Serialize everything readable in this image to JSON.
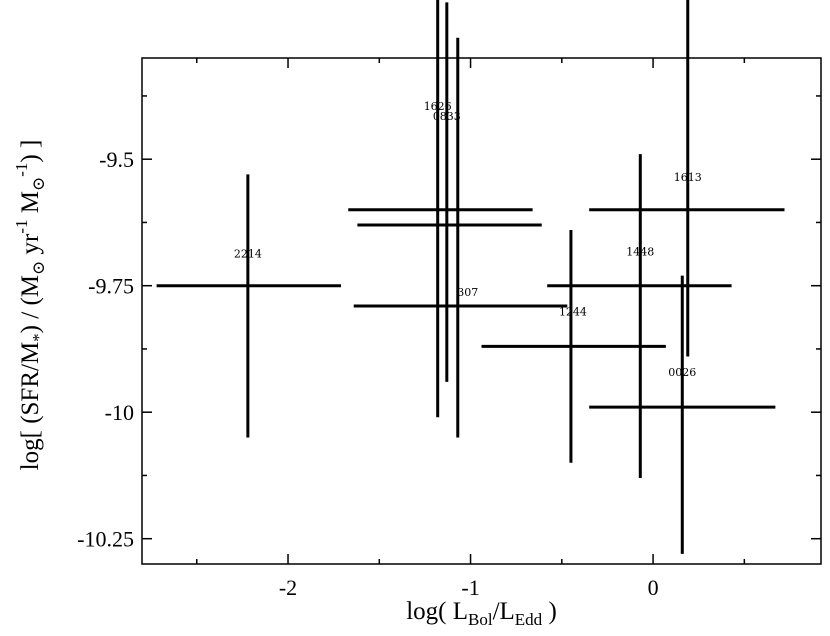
{
  "chart_data": {
    "type": "scatter",
    "title": "",
    "xlabel": {
      "prefix": "log( L",
      "sub1": "Bol",
      "mid": "/L",
      "sub2": "Edd",
      "suffix": " )"
    },
    "ylabel": {
      "prefix": "log[ (SFR/M",
      "sub1": "*",
      "mid": ") / (M",
      "sun": "⊙",
      "yr": " yr",
      "sup1": "-1",
      "m2": " M",
      "sup2": "-1",
      "suffix": ") ]"
    },
    "xlim": [
      -2.8,
      0.92
    ],
    "ylim": [
      -10.3,
      -9.3
    ],
    "xticks": [
      {
        "value": -2,
        "label": "-2"
      },
      {
        "value": -1,
        "label": "-1"
      },
      {
        "value": 0,
        "label": "0"
      }
    ],
    "yticks": [
      {
        "value": -9.5,
        "label": "-9.5"
      },
      {
        "value": -9.75,
        "label": "-9.75"
      },
      {
        "value": -10,
        "label": "-10"
      },
      {
        "value": -10.25,
        "label": "-10.25"
      }
    ],
    "grid": false,
    "legend": "none",
    "points": [
      {
        "label": "2214",
        "x": -2.22,
        "y": -9.75,
        "x_low": -2.72,
        "x_high": -1.71,
        "y_low": -10.05,
        "y_high": -9.53
      },
      {
        "label": "1626",
        "x": -1.18,
        "y": -9.6,
        "x_low": -1.67,
        "x_high": -0.66,
        "y_low": -10.01,
        "y_high": -9.15
      },
      {
        "label": "0833",
        "x": -1.13,
        "y": -9.63,
        "x_low": -1.62,
        "x_high": -0.61,
        "y_low": -9.94,
        "y_high": -9.19
      },
      {
        "label": "307",
        "x": -1.07,
        "y": -9.79,
        "x_low": -1.64,
        "x_high": -0.47,
        "y_low": -10.05,
        "y_high": -9.26
      },
      {
        "label": "1244",
        "x": -0.45,
        "y": -9.87,
        "x_low": -0.94,
        "x_high": 0.07,
        "y_low": -10.1,
        "y_high": -9.64
      },
      {
        "label": "1448",
        "x": -0.07,
        "y": -9.75,
        "x_low": -0.58,
        "x_high": 0.43,
        "y_low": -10.13,
        "y_high": -9.49
      },
      {
        "label": "1613",
        "x": 0.19,
        "y": -9.6,
        "x_low": -0.35,
        "x_high": 0.72,
        "y_low": -9.89,
        "y_high": -9.15
      },
      {
        "label": "0026",
        "x": 0.16,
        "y": -9.99,
        "x_low": -0.35,
        "x_high": 0.67,
        "y_low": -10.28,
        "y_high": -9.73
      }
    ]
  }
}
